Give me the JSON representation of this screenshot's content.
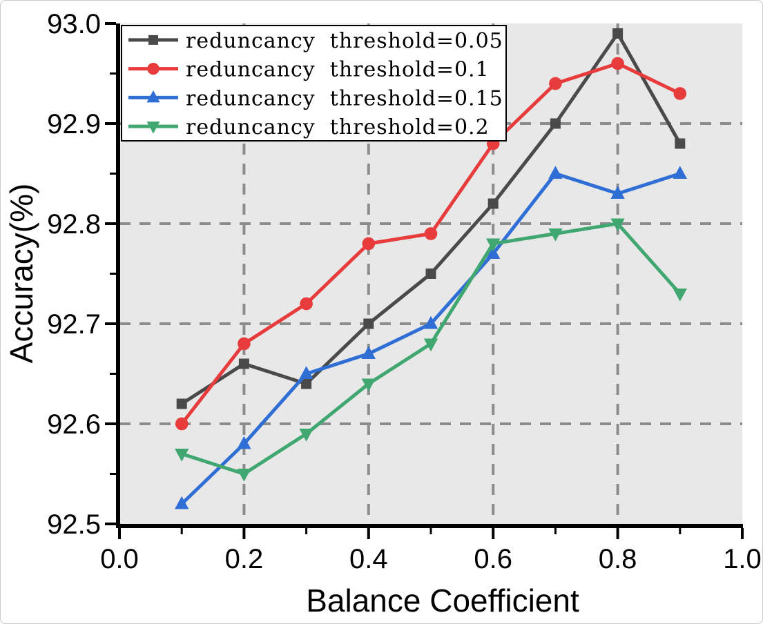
{
  "chart_data": {
    "type": "line",
    "title": "",
    "xlabel": "Balance Coefficient",
    "ylabel": "Accuracy(%)",
    "xlim": [
      0.0,
      1.0
    ],
    "ylim": [
      92.5,
      93.0
    ],
    "x_ticks": [
      "0.0",
      "0.2",
      "0.4",
      "0.6",
      "0.8",
      "1.0"
    ],
    "x_tick_values": [
      0.0,
      0.2,
      0.4,
      0.6,
      0.8,
      1.0
    ],
    "x_minor_tick_values": [
      0.1,
      0.3,
      0.5,
      0.7,
      0.9
    ],
    "y_ticks": [
      "92.5",
      "92.6",
      "92.7",
      "92.8",
      "92.9",
      "93.0"
    ],
    "y_tick_values": [
      92.5,
      92.6,
      92.7,
      92.8,
      92.9,
      93.0
    ],
    "y_minor_tick_values": [
      92.55,
      92.65,
      92.75,
      92.85,
      92.95
    ],
    "grid": {
      "style": "dashed",
      "horizontal_values": [
        92.6,
        92.7,
        92.8,
        92.9
      ],
      "vertical_values": [
        0.2,
        0.4,
        0.6,
        0.8
      ]
    },
    "legend_position": "top-left",
    "x": [
      0.1,
      0.2,
      0.3,
      0.4,
      0.5,
      0.6,
      0.7,
      0.8,
      0.9
    ],
    "series": [
      {
        "name": "reduncancy  threshold=0.05",
        "marker": "square",
        "color": "#4a4a4a",
        "values": [
          92.62,
          92.66,
          92.64,
          92.7,
          92.75,
          92.82,
          92.9,
          92.99,
          92.88
        ]
      },
      {
        "name": "reduncancy  threshold=0.1",
        "marker": "circle",
        "color": "#e73b3c",
        "values": [
          92.6,
          92.68,
          92.72,
          92.78,
          92.79,
          92.88,
          92.94,
          92.96,
          92.93
        ]
      },
      {
        "name": "reduncancy  threshold=0.15",
        "marker": "triangle-up",
        "color": "#2e6ed5",
        "values": [
          92.52,
          92.58,
          92.65,
          92.67,
          92.7,
          92.77,
          92.85,
          92.83,
          92.85
        ]
      },
      {
        "name": "reduncancy  threshold=0.2",
        "marker": "triangle-down",
        "color": "#41a771",
        "values": [
          92.57,
          92.55,
          92.59,
          92.64,
          92.68,
          92.78,
          92.79,
          92.8,
          92.73
        ]
      }
    ],
    "colors": {
      "plot_background": "#e8e8e8",
      "gridline": "#8c8c8c",
      "axis": "#000000",
      "legend_background": "#ffffff",
      "legend_border": "#000000"
    }
  }
}
